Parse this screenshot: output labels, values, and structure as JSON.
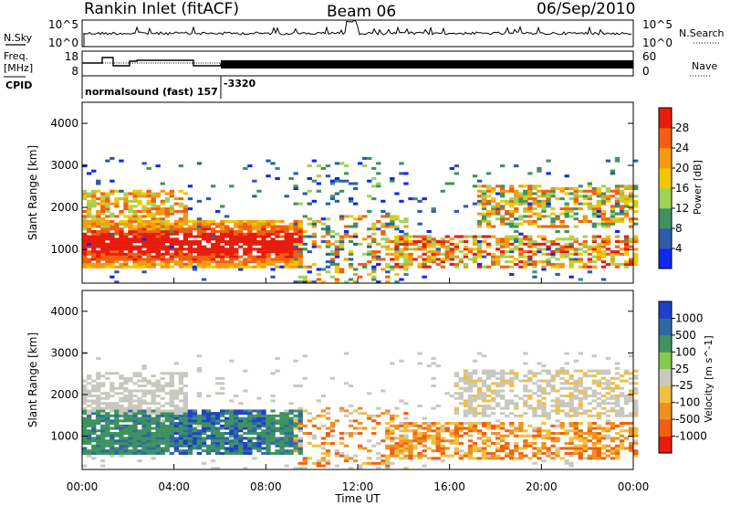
{
  "header": {
    "station": "Rankin Inlet (fitACF)",
    "beam": "Beam 06",
    "date": "06/Sep/2010"
  },
  "top_panel": {
    "left_label": "N.Sky",
    "right_label": "N.Search",
    "left_ticks": [
      "10^5",
      "10^0"
    ],
    "right_ticks": [
      "10^5",
      "10^0"
    ]
  },
  "freq_panel": {
    "left_label_1": "Freq.",
    "left_label_2": "[MHz]",
    "right_label": "Nave",
    "left_ticks": [
      "18",
      "8"
    ],
    "right_ticks": [
      "60",
      "0"
    ],
    "cpid_label": "CPID",
    "cpid_text": "normalsound (fast) 157",
    "cpid_value": "-3320"
  },
  "chart_data": [
    {
      "type": "heatmap",
      "title": "",
      "xlabel": "",
      "ylabel": "Slant Range [km]",
      "ylim": [
        200,
        4500
      ],
      "xlim": [
        0,
        24
      ],
      "y_ticks": [
        "1000",
        "2000",
        "3000",
        "4000"
      ],
      "colorbar_label": "Power [dB]",
      "colorbar_ticks": [
        "4",
        "8",
        "12",
        "16",
        "20",
        "24",
        "28"
      ],
      "colorbar_colors": [
        "#1028f0",
        "#2e5ca8",
        "#3f9260",
        "#9ed35a",
        "#f0c800",
        "#f59a10",
        "#f06010",
        "#e81c0c"
      ],
      "grid": false
    },
    {
      "type": "heatmap",
      "title": "",
      "xlabel": "Time UT",
      "ylabel": "Slant Range [km]",
      "ylim": [
        200,
        4500
      ],
      "xlim": [
        0,
        24
      ],
      "y_ticks": [
        "1000",
        "2000",
        "3000",
        "4000"
      ],
      "x_ticks": [
        "00:00",
        "04:00",
        "08:00",
        "12:00",
        "16:00",
        "20:00",
        "00:00"
      ],
      "colorbar_label": "Velocity [m s^-1]",
      "colorbar_ticks": [
        "1000",
        "500",
        "100",
        "25",
        "-25",
        "-100",
        "-500",
        "-1000"
      ],
      "colorbar_colors": [
        "#2040c8",
        "#2e6aa0",
        "#3f9260",
        "#86c850",
        "#c8c8c0",
        "#f0c040",
        "#f09020",
        "#f06010",
        "#e81c0c"
      ],
      "grid": false
    }
  ]
}
